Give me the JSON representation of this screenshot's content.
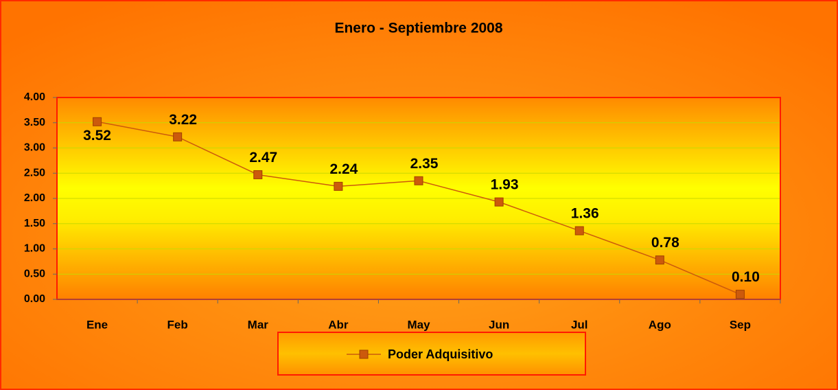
{
  "chart_data": {
    "type": "line",
    "title": "Enero - Septiembre 2008",
    "categories": [
      "Ene",
      "Feb",
      "Mar",
      "Abr",
      "May",
      "Jun",
      "Jul",
      "Ago",
      "Sep"
    ],
    "series": [
      {
        "name": "Poder Adquisitivo",
        "color": "#cc5a0c",
        "values": [
          3.52,
          3.22,
          2.47,
          2.24,
          2.35,
          1.93,
          1.36,
          0.78,
          0.1
        ],
        "value_labels": [
          "3.52",
          "3.22",
          "2.47",
          "2.24",
          "2.35",
          "1.93",
          "1.36",
          "0.78",
          "0.10"
        ]
      }
    ],
    "ylim": [
      0,
      4
    ],
    "yticks": [
      {
        "value": 0,
        "label": "0.00"
      },
      {
        "value": 0.5,
        "label": "0.50"
      },
      {
        "value": 1,
        "label": "1.00"
      },
      {
        "value": 1.5,
        "label": "1.50"
      },
      {
        "value": 2,
        "label": "2.00"
      },
      {
        "value": 2.5,
        "label": "2.50"
      },
      {
        "value": 3,
        "label": "3.00"
      },
      {
        "value": 3.5,
        "label": "3.50"
      },
      {
        "value": 4,
        "label": "4.00"
      }
    ],
    "grid": true,
    "legend": "bottom"
  }
}
